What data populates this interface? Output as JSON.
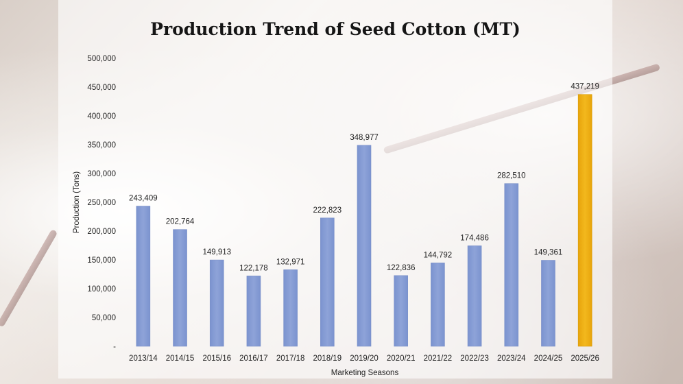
{
  "chart_data": {
    "type": "bar",
    "title": "Production Trend of Seed Cotton (MT)",
    "xlabel": "Marketing Seasons",
    "ylabel": "Production (Tons)",
    "ylim": [
      0,
      500000
    ],
    "yticks": [
      "-",
      "50,000",
      "100,000",
      "150,000",
      "200,000",
      "250,000",
      "300,000",
      "350,000",
      "400,000",
      "450,000",
      "500,000"
    ],
    "categories": [
      "2013/14",
      "2014/15",
      "2015/16",
      "2016/17",
      "2017/18",
      "2018/19",
      "2019/20",
      "2020/21",
      "2021/22",
      "2022/23",
      "2023/24",
      "2024/25",
      "2025/26"
    ],
    "values": [
      243409,
      202764,
      149913,
      122178,
      132971,
      222823,
      348977,
      122836,
      144792,
      174486,
      282510,
      149361,
      437219
    ],
    "data_labels": [
      "243,409",
      "202,764",
      "149,913",
      "122,178",
      "132,971",
      "222,823",
      "348,977",
      "122,836",
      "144,792",
      "174,486",
      "282,510",
      "149,361",
      "437,219"
    ],
    "grid": false,
    "legend": "none",
    "colors": {
      "bar": "#8ea3d8",
      "bar_highlight": "#f3b81d"
    },
    "highlight_index": 12
  }
}
